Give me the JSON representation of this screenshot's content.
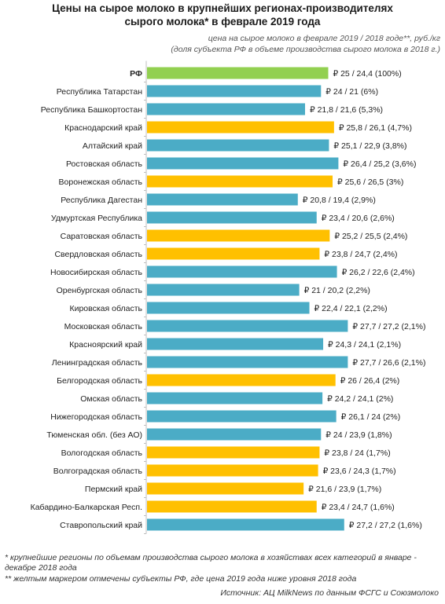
{
  "title_line1": "Цены на сырое молоко в крупнейших регионах-производителях",
  "title_line2": "сырого молока* в феврале 2019 года",
  "note_line1": "цена на сырое молоко в феврале 2019 / 2018 годе**, руб./кг",
  "note_line2": "(доля субъекта РФ в объеме производства сырого молока в 2018 г.)",
  "footnote1": "* крупнейшие регионы по объемам производства сырого молока в хозяйствах всех категорий в январе - декабре 2018 года",
  "footnote2": "** желтым маркером отмечены субъекты РФ, где цена 2019 года ниже уровня 2018 года",
  "source": "Источник: АЦ MilkNews по данным ФСГС и Союзмолоко",
  "colors": {
    "rf": "#92d050",
    "blue": "#4bacc6",
    "yellow": "#ffc000"
  },
  "chart_data": {
    "type": "bar",
    "orientation": "horizontal",
    "categories": [
      "РФ",
      "Республика Татарстан",
      "Республика Башкортостан",
      "Краснодарский край",
      "Алтайский край",
      "Ростовская область",
      "Воронежская область",
      "Республика Дагестан",
      "Удмуртская Республика",
      "Саратовская область",
      "Свердловская область",
      "Новосибирская область",
      "Оренбургская область",
      "Кировская область",
      "Московская область",
      "Красноярский край",
      "Ленинградская область",
      "Белгородская область",
      "Омская область",
      "Нижегородская область",
      "Тюменская обл. (без АО)",
      "Вологодская область",
      "Волгоградская область",
      "Пермский край",
      "Кабардино-Балкарская Респ.",
      "Ставропольский край"
    ],
    "values": [
      25,
      24,
      21.8,
      25.8,
      25.1,
      26.4,
      25.6,
      20.8,
      23.4,
      25.2,
      23.8,
      26.2,
      21,
      22.4,
      27.7,
      24.3,
      27.7,
      26,
      24.2,
      26.1,
      24,
      23.8,
      23.6,
      21.6,
      23.4,
      27.2
    ],
    "labels": [
      "₽ 25 / 24,4 (100%)",
      "₽ 24 / 21 (6%)",
      "₽ 21,8 / 21,6 (5,3%)",
      "₽ 25,8 / 26,1 (4,7%)",
      "₽ 25,1 / 22,9 (3,8%)",
      "₽ 26,4 / 25,2 (3,6%)",
      "₽ 25,6 / 26,5 (3%)",
      "₽ 20,8 / 19,4 (2,9%)",
      "₽ 23,4 / 20,6 (2,6%)",
      "₽ 25,2 / 25,5 (2,4%)",
      "₽ 23,8 / 24,7 (2,4%)",
      "₽ 26,2 / 22,6 (2,4%)",
      "₽ 21 / 20,2 (2,2%)",
      "₽ 22,4 / 22,1 (2,2%)",
      "₽ 27,7 / 27,2 (2,1%)",
      "₽ 24,3 / 24,1 (2,1%)",
      "₽ 27,7 / 26,6 (2,1%)",
      "₽ 26 / 26,4 (2%)",
      "₽ 24,2 / 24,1 (2%)",
      "₽ 26,1 / 24 (2%)",
      "₽ 24 / 23,9 (1,8%)",
      "₽ 23,8 / 24 (1,7%)",
      "₽ 23,6 / 24,3 (1,7%)",
      "₽ 21,6 / 23,9 (1,7%)",
      "₽ 23,4 / 24,7 (1,6%)",
      "₽ 27,2 / 27,2 (1,6%)"
    ],
    "color_keys": [
      "rf",
      "blue",
      "blue",
      "yellow",
      "blue",
      "blue",
      "yellow",
      "blue",
      "blue",
      "yellow",
      "yellow",
      "blue",
      "blue",
      "blue",
      "blue",
      "blue",
      "blue",
      "yellow",
      "blue",
      "blue",
      "blue",
      "yellow",
      "yellow",
      "yellow",
      "yellow",
      "blue"
    ],
    "bold_categories": [
      "РФ"
    ]
  }
}
